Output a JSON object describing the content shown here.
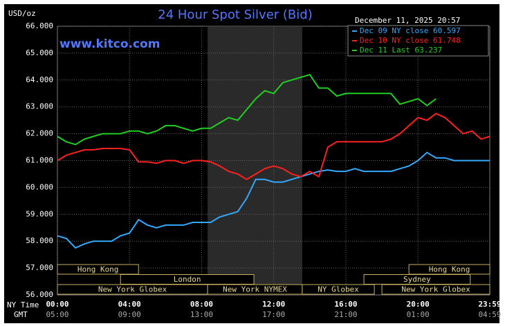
{
  "chart_data": {
    "type": "line",
    "title": "24 Hour Spot Silver (Bid)",
    "unit_label": "USD/oz",
    "watermark": "www.kitco.com",
    "timestamp": "December 11, 2025 20:57",
    "x_axis_label": "NY Time",
    "x2_axis_label": "GMT",
    "xlim": [
      0,
      23.983
    ],
    "xticks": [
      {
        "value": 0,
        "label": "00:00"
      },
      {
        "value": 4,
        "label": "04:00"
      },
      {
        "value": 8,
        "label": "08:00"
      },
      {
        "value": 12,
        "label": "12:00"
      },
      {
        "value": 16,
        "label": "16:00"
      },
      {
        "value": 20,
        "label": "20:00"
      },
      {
        "value": 23.983,
        "label": "23:59"
      }
    ],
    "x2_labels": [
      "05:00",
      "09:00",
      "13:00",
      "17:00",
      "21:00",
      "01:00",
      "04:59"
    ],
    "ylim": [
      56,
      66
    ],
    "yticks": [
      {
        "value": 56,
        "label": "56.000"
      },
      {
        "value": 57,
        "label": "57.000"
      },
      {
        "value": 58,
        "label": "58.000"
      },
      {
        "value": 59,
        "label": "59.000"
      },
      {
        "value": 60,
        "label": "60.000"
      },
      {
        "value": 61,
        "label": "61.000"
      },
      {
        "value": 62,
        "label": "62.000"
      },
      {
        "value": 63,
        "label": "63.000"
      },
      {
        "value": 64,
        "label": "64.000"
      },
      {
        "value": 65,
        "label": "65.000"
      },
      {
        "value": 66,
        "label": "66.000"
      }
    ],
    "grid": true,
    "legend": "top-right",
    "x": [
      0,
      0.5,
      1,
      1.5,
      2,
      2.5,
      3,
      3.5,
      4,
      4.5,
      5,
      5.5,
      6,
      6.5,
      7,
      7.5,
      8,
      8.5,
      9,
      9.5,
      10,
      10.5,
      11,
      11.5,
      12,
      12.5,
      13,
      13.5,
      14,
      14.5,
      15,
      15.5,
      16,
      16.5,
      17,
      17.5,
      18,
      18.5,
      19,
      19.5,
      20,
      20.5,
      21,
      21.5,
      22,
      22.5,
      23,
      23.5,
      23.983
    ],
    "series": [
      {
        "name": "Dec 09 NY close 60.597",
        "color": "#33aaff",
        "values": [
          58.2,
          58.1,
          57.75,
          57.9,
          58.0,
          58.0,
          58.0,
          58.2,
          58.3,
          58.8,
          58.6,
          58.5,
          58.6,
          58.6,
          58.6,
          58.7,
          58.7,
          58.7,
          58.9,
          59.0,
          59.1,
          59.6,
          60.3,
          60.3,
          60.2,
          60.2,
          60.3,
          60.4,
          60.5,
          60.6,
          60.65,
          60.6,
          60.6,
          60.7,
          60.6,
          60.6,
          60.6,
          60.6,
          60.7,
          60.8,
          61.0,
          61.3,
          61.1,
          61.1,
          61.0,
          61.0,
          61.0,
          61.0,
          61.0
        ]
      },
      {
        "name": "Dec 10 NY close 61.748",
        "color": "#ff2020",
        "values": [
          61.0,
          61.2,
          61.3,
          61.4,
          61.4,
          61.45,
          61.45,
          61.45,
          61.4,
          60.95,
          60.95,
          60.9,
          61.0,
          61.0,
          60.9,
          61.0,
          61.0,
          60.95,
          60.8,
          60.6,
          60.5,
          60.3,
          60.5,
          60.7,
          60.8,
          60.7,
          60.5,
          60.4,
          60.6,
          60.4,
          61.5,
          61.7,
          61.7,
          61.7,
          61.7,
          61.7,
          61.7,
          61.8,
          62.0,
          62.3,
          62.6,
          62.5,
          62.75,
          62.6,
          62.3,
          62.0,
          62.1,
          61.8,
          61.9
        ]
      },
      {
        "name": "Dec 11 Last 63.237",
        "color": "#20d020",
        "values": [
          61.9,
          61.7,
          61.6,
          61.8,
          61.9,
          62.0,
          62.0,
          62.0,
          62.1,
          62.1,
          62.0,
          62.1,
          62.3,
          62.3,
          62.2,
          62.1,
          62.2,
          62.2,
          62.4,
          62.6,
          62.5,
          62.9,
          63.3,
          63.6,
          63.5,
          63.9,
          64.0,
          64.1,
          64.2,
          63.7,
          63.7,
          63.4,
          63.5,
          63.5,
          63.5,
          63.5,
          63.5,
          63.5,
          63.1,
          63.2,
          63.3,
          63.05,
          63.3,
          null,
          null,
          null,
          null,
          null,
          null
        ]
      }
    ],
    "sessions": [
      {
        "label": "Hong Kong",
        "start": 0,
        "end": 4.5,
        "row": 0
      },
      {
        "label": "Hong Kong",
        "start": 19.5,
        "end": 23.983,
        "row": 0
      },
      {
        "label": "London",
        "start": 3.5,
        "end": 10.9,
        "row": 1
      },
      {
        "label": "Sydney",
        "start": 17.0,
        "end": 22.9,
        "row": 1
      },
      {
        "label": "New York Globex",
        "start": 0,
        "end": 8.33,
        "row": 2
      },
      {
        "label": "New York NYMEX",
        "start": 8.33,
        "end": 13.58,
        "row": 2
      },
      {
        "label": "NY Globex",
        "start": 13.58,
        "end": 17.58,
        "row": 2
      },
      {
        "label": "New York Globex",
        "start": 18.0,
        "end": 23.983,
        "row": 2
      }
    ]
  }
}
